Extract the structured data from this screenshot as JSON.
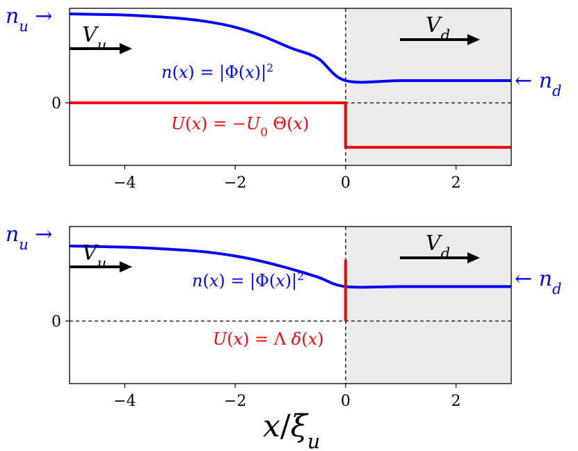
{
  "chart_data": [
    {
      "type": "line",
      "xlim": [
        -5,
        3
      ],
      "ylim": [
        -0.9,
        1.7
      ],
      "yticks": [
        {
          "value": 0,
          "label": "0"
        }
      ],
      "xticks": [
        {
          "value": -4,
          "label": "−4"
        },
        {
          "value": -2,
          "label": "−2"
        },
        {
          "value": 0,
          "label": "0"
        },
        {
          "value": 2,
          "label": "2"
        }
      ],
      "shaded_region": {
        "from": 0,
        "to": 3,
        "color": "#ebebeb"
      },
      "series": [
        {
          "name": "n(x) = |Φ(x)|²",
          "color": "#0000ff",
          "x": [
            -5,
            -4.5,
            -4,
            -3.5,
            -3,
            -2.5,
            -2,
            -1.5,
            -1,
            -0.5,
            0,
            1,
            2,
            3
          ],
          "y": [
            1.6,
            1.59,
            1.58,
            1.555,
            1.52,
            1.46,
            1.36,
            1.2,
            0.99,
            0.8,
            0.4,
            0.4,
            0.4,
            0.4
          ]
        },
        {
          "name": "U(x) = −U₀ Θ(x)",
          "color": "#ff0000",
          "x": [
            -5,
            0,
            0,
            3
          ],
          "y": [
            0,
            0,
            -0.8,
            -0.8
          ]
        }
      ],
      "annotations": {
        "n_u": "n_u →",
        "V_u": "V_u",
        "V_d": "V_d",
        "n_d": "← n_d",
        "density_label": "n(x) = |Φ(x)|²",
        "potential_label": "U(x) = −U₀ Θ(x)"
      },
      "colors": {
        "density": "#0000ff",
        "potential": "#ff0000"
      }
    },
    {
      "type": "line",
      "xlim": [
        -5,
        3
      ],
      "ylim": [
        -1.0,
        1.7
      ],
      "yticks": [
        {
          "value": 0,
          "label": "0"
        }
      ],
      "xticks": [
        {
          "value": -4,
          "label": "−4"
        },
        {
          "value": -2,
          "label": "−2"
        },
        {
          "value": 0,
          "label": "0"
        },
        {
          "value": 2,
          "label": "2"
        }
      ],
      "shaded_region": {
        "from": 0,
        "to": 3,
        "color": "#ebebeb"
      },
      "series": [
        {
          "name": "n(x) = |Φ(x)|²",
          "color": "#0000ff",
          "x": [
            -5,
            -4.5,
            -4,
            -3.5,
            -3,
            -2.5,
            -2,
            -1.5,
            -1,
            -0.5,
            0,
            1,
            2,
            3
          ],
          "y": [
            1.35,
            1.34,
            1.33,
            1.31,
            1.28,
            1.24,
            1.17,
            1.07,
            0.94,
            0.79,
            0.62,
            0.62,
            0.62,
            0.62
          ]
        },
        {
          "name": "U(x) = Λ δ(x)",
          "color": "#ff0000",
          "x": [
            0,
            0
          ],
          "y": [
            0,
            1.1
          ]
        }
      ],
      "annotations": {
        "n_u": "n_u →",
        "V_u": "V_u",
        "V_d": "V_d",
        "n_d": "← n_d",
        "density_label": "n(x) = |Φ(x)|²",
        "potential_label": "U(x) = Λ δ(x)"
      },
      "colors": {
        "density": "#0000ff",
        "potential": "#ff0000"
      }
    }
  ],
  "xlabel": "x/ξ_u"
}
